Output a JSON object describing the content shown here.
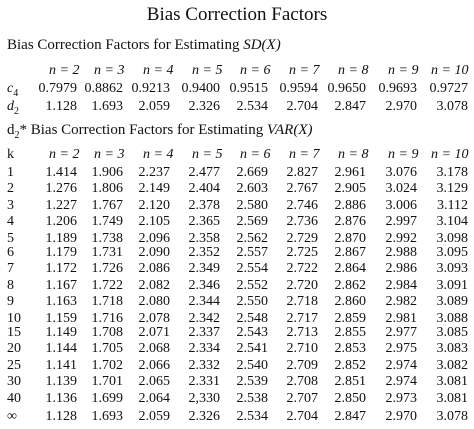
{
  "title": "Bias Correction Factors",
  "section1": {
    "text": "Bias Correction Factors for Estimating ",
    "italic": "SD(X)"
  },
  "section2": {
    "text": "* Bias Correction Factors for Estimating ",
    "prefix": "d",
    "sub": "2",
    "italic": "VAR(X)"
  },
  "header": [
    "n = 2",
    "n = 3",
    "n = 4",
    "n = 5",
    "n = 6",
    "n = 7",
    "n = 8",
    "n = 9",
    "n = 10"
  ],
  "c4": {
    "label": "c",
    "sub": "4",
    "values": [
      "0.7979",
      "0.8862",
      "0.9213",
      "0.9400",
      "0.9515",
      "0.9594",
      "0.9650",
      "0.9693",
      "0.9727"
    ]
  },
  "d2": {
    "label": "d",
    "sub": "2",
    "values": [
      "1.128",
      "1.693",
      "2.059",
      "2.326",
      "2.534",
      "2.704",
      "2.847",
      "2.970",
      "3.078"
    ]
  },
  "k_label": "k",
  "table": [
    {
      "k": "1",
      "values": [
        "1.414",
        "1.906",
        "2.237",
        "2.477",
        "2.669",
        "2.827",
        "2.961",
        "3.076",
        "3.178"
      ]
    },
    {
      "k": "2",
      "values": [
        "1.276",
        "1.806",
        "2.149",
        "2.404",
        "2.603",
        "2.767",
        "2.905",
        "3.024",
        "3.129"
      ]
    },
    {
      "k": "3",
      "values": [
        "1.227",
        "1.767",
        "2.120",
        "2.378",
        "2.580",
        "2.746",
        "2.886",
        "3.006",
        "3.112"
      ]
    },
    {
      "k": "4",
      "values": [
        "1.206",
        "1.749",
        "2.105",
        "2.365",
        "2.569",
        "2.736",
        "2.876",
        "2.997",
        "3.104"
      ]
    },
    {
      "k": "5",
      "values": [
        "1.189",
        "1.738",
        "2.096",
        "2.358",
        "2.562",
        "2.729",
        "2.870",
        "2.992",
        "3.098"
      ]
    },
    {
      "k": "6",
      "values": [
        "1.179",
        "1.731",
        "2.090",
        "2.352",
        "2.557",
        "2.725",
        "2.867",
        "2.988",
        "3.095"
      ]
    },
    {
      "k": "7",
      "values": [
        "1.172",
        "1.726",
        "2.086",
        "2.349",
        "2.554",
        "2.722",
        "2.864",
        "2.986",
        "3.093"
      ]
    },
    {
      "k": "8",
      "values": [
        "1.167",
        "1.722",
        "2.082",
        "2.346",
        "2.552",
        "2.720",
        "2.862",
        "2.984",
        "3.091"
      ]
    },
    {
      "k": "9",
      "values": [
        "1.163",
        "1.718",
        "2.080",
        "2.344",
        "2.550",
        "2.718",
        "2.860",
        "2.982",
        "3.089"
      ]
    },
    {
      "k": "10",
      "values": [
        "1.159",
        "1.716",
        "2.078",
        "2.342",
        "2.548",
        "2.717",
        "2.859",
        "2.981",
        "3.088"
      ]
    },
    {
      "k": "15",
      "values": [
        "1.149",
        "1.708",
        "2.071",
        "2.337",
        "2.543",
        "2.713",
        "2.855",
        "2.977",
        "3.085"
      ]
    },
    {
      "k": "20",
      "values": [
        "1.144",
        "1.705",
        "2.068",
        "2.334",
        "2.541",
        "2.710",
        "2.853",
        "2.975",
        "3.083"
      ]
    },
    {
      "k": "25",
      "values": [
        "1.141",
        "1.702",
        "2.066",
        "2.332",
        "2.540",
        "2.709",
        "2.852",
        "2.974",
        "3.082"
      ]
    },
    {
      "k": "30",
      "values": [
        "1.139",
        "1.701",
        "2.065",
        "2.331",
        "2.539",
        "2.708",
        "2.851",
        "2.974",
        "3.081"
      ]
    },
    {
      "k": "40",
      "values": [
        "1.136",
        "1.699",
        "2.064",
        "2,330",
        "2.538",
        "2.707",
        "2.850",
        "2.973",
        "3.081"
      ]
    },
    {
      "k": "∞",
      "values": [
        "1.128",
        "1.693",
        "2.059",
        "2.326",
        "2.534",
        "2.704",
        "2.847",
        "2.970",
        "3.078"
      ]
    }
  ]
}
